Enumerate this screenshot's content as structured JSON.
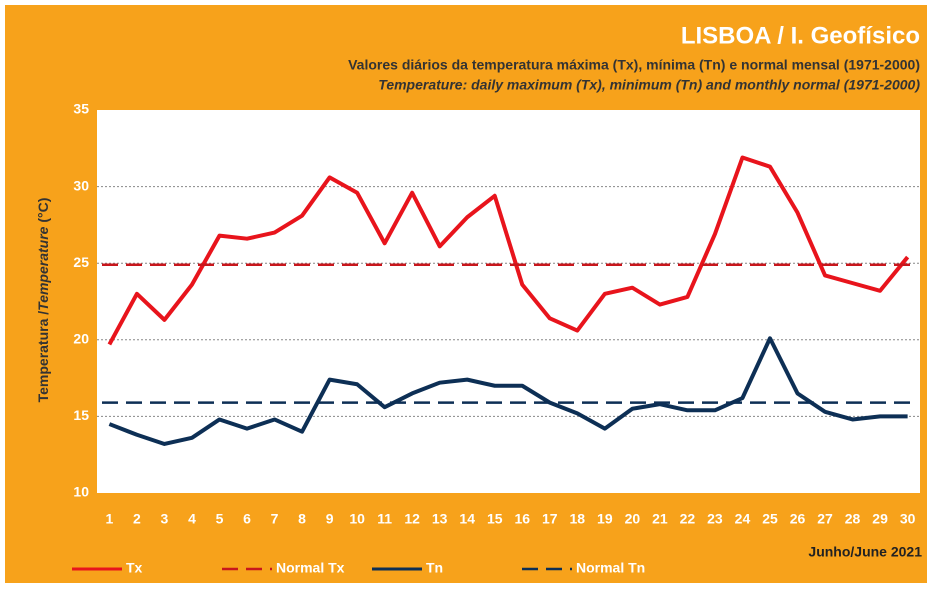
{
  "chart_data": {
    "type": "line",
    "title": "LISBOA / I. Geofísico",
    "subtitle": "Valores diários da temperatura máxima (Tx), mínima (Tn) e normal mensal  (1971-2000)",
    "subtitle_en": "Temperature: daily maximum  (Tx), minimum (Tn) and  monthly normal  (1971-2000)",
    "y_label": [
      "Temperatura /",
      "Temperature",
      " (°C)"
    ],
    "period": "Junho/June 2021",
    "x": [
      1,
      2,
      3,
      4,
      5,
      6,
      7,
      8,
      9,
      10,
      11,
      12,
      13,
      14,
      15,
      16,
      17,
      18,
      19,
      20,
      21,
      22,
      23,
      24,
      25,
      26,
      27,
      28,
      29,
      30
    ],
    "xlim": [
      0.55,
      30.45
    ],
    "ylim": [
      10,
      35
    ],
    "yticks": [
      10,
      15,
      20,
      25,
      30,
      35
    ],
    "grid": true,
    "series": [
      {
        "name": "Tx",
        "color": "#e8141c",
        "values": [
          19.7,
          23.0,
          21.3,
          23.6,
          26.8,
          26.6,
          27.0,
          28.1,
          30.6,
          29.6,
          26.3,
          29.6,
          26.1,
          28.0,
          29.4,
          23.6,
          21.4,
          20.6,
          23.0,
          23.4,
          22.3,
          22.8,
          26.9,
          31.9,
          31.3,
          28.3,
          24.2,
          23.7,
          23.2,
          25.4
        ]
      },
      {
        "name": "Normal Tx",
        "color": "#c8161c",
        "dashed": true,
        "value": 24.9
      },
      {
        "name": "Tn",
        "color": "#0d2f55",
        "values": [
          14.5,
          13.8,
          13.2,
          13.6,
          14.8,
          14.2,
          14.8,
          14.0,
          17.4,
          17.1,
          15.6,
          16.5,
          17.2,
          17.4,
          17.0,
          17.0,
          15.9,
          15.2,
          14.2,
          15.5,
          15.8,
          15.4,
          15.4,
          16.2,
          20.1,
          16.5,
          15.3,
          14.8,
          15.0,
          15.0
        ]
      },
      {
        "name": "Normal Tn",
        "color": "#0d2f55",
        "dashed": true,
        "value": 15.9
      }
    ]
  }
}
